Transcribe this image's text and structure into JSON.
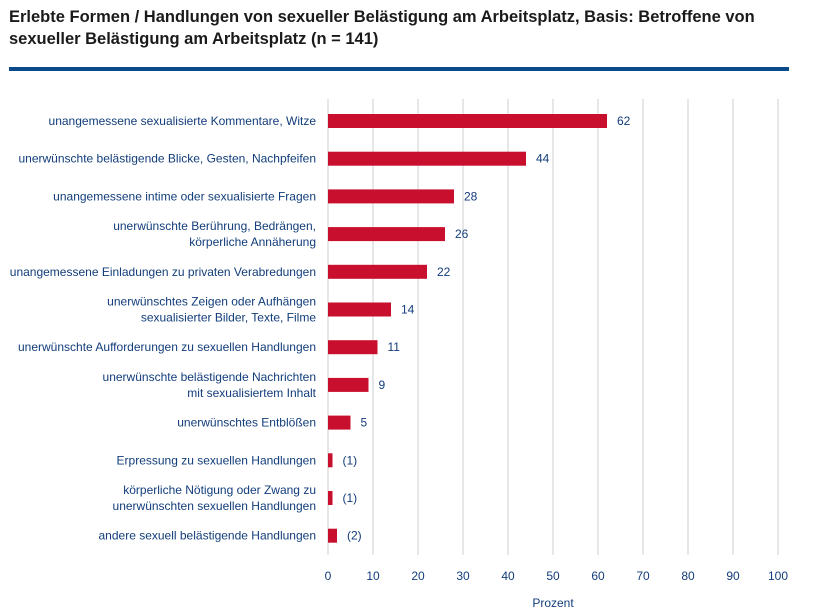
{
  "title": "Erlebte Formen / Handlungen von sexueller Belästigung am Arbeitsplatz, Basis: Betroffene von sexueller Belästigung am Arbeitsplatz (n = 141)",
  "colors": {
    "bar": "#c8102e",
    "rule": "#0b4a8a",
    "grid": "#cfcfcf",
    "text": "#123d7a"
  },
  "chart_data": {
    "type": "bar",
    "orientation": "horizontal",
    "categories": [
      [
        "unangemessene sexualisierte Kommentare, Witze"
      ],
      [
        "unerwünschte belästigende Blicke, Gesten, Nachpfeifen"
      ],
      [
        "unangemessene intime oder sexualisierte Fragen"
      ],
      [
        "unerwünschte Berührung, Bedrängen,",
        "körperliche Annäherung"
      ],
      [
        "unangemessene Einladungen zu privaten Verabredungen"
      ],
      [
        "unerwünschtes Zeigen oder Aufhängen",
        "sexualisierter Bilder, Texte, Filme"
      ],
      [
        "unerwünschte Aufforderungen zu sexuellen Handlungen"
      ],
      [
        "unerwünschte belästigende Nachrichten",
        "mit sexualisiertem Inhalt"
      ],
      [
        "unerwünschtes Entblößen"
      ],
      [
        "Erpressung zu sexuellen Handlungen"
      ],
      [
        "körperliche Nötigung oder Zwang zu",
        "unerwünschten sexuellen Handlungen"
      ],
      [
        "andere sexuell belästigende Handlungen"
      ]
    ],
    "values": [
      62,
      44,
      28,
      26,
      22,
      14,
      11,
      9,
      5,
      1,
      1,
      2
    ],
    "value_labels": [
      "62",
      "44",
      "28",
      "26",
      "22",
      "14",
      "11",
      "9",
      "5",
      "(1)",
      "(1)",
      "(2)"
    ],
    "xlabel": "Prozent",
    "xlim": [
      0,
      100
    ],
    "xticks": [
      0,
      10,
      20,
      30,
      40,
      50,
      60,
      70,
      80,
      90,
      100
    ],
    "grid": "vertical"
  }
}
